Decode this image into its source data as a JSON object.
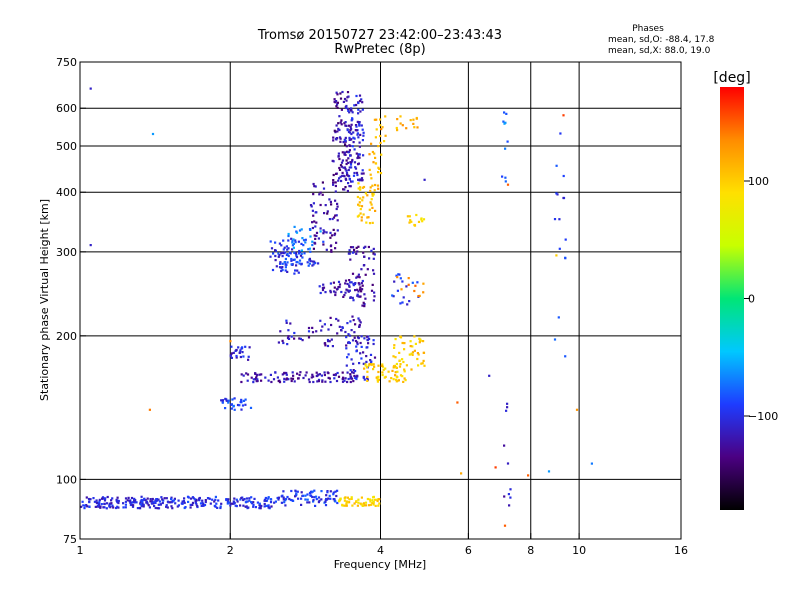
{
  "chart_data": {
    "type": "scatter",
    "title": "Tromsø 20150727 23:42:00–23:43:43",
    "subtitle": "RwPretec (8p)",
    "stats": {
      "heading": "Phases",
      "line1": "mean, sd,O: -88.4, 17.8",
      "line2": "mean, sd,X:  88.0, 19.0"
    },
    "xlabel": "Frequency [MHz]",
    "ylabel": "Stationary phase Virtual Height [km]",
    "x_scale": "log",
    "y_scale": "log",
    "xlim": [
      1,
      16
    ],
    "ylim": [
      75,
      750
    ],
    "x_ticks": [
      1,
      2,
      4,
      6,
      8,
      10,
      16
    ],
    "x_tick_labels": [
      "1",
      "2",
      "4",
      "6",
      "8",
      "10",
      "16"
    ],
    "x_gridlines": [
      2,
      4,
      6,
      8,
      10
    ],
    "y_ticks": [
      75,
      100,
      200,
      300,
      400,
      500,
      600,
      750
    ],
    "y_tick_labels": [
      "75",
      "100",
      "200",
      "300",
      "400",
      "500",
      "600",
      "750"
    ],
    "y_gridlines": [
      100,
      200,
      300,
      400,
      500,
      600
    ],
    "grid": true,
    "colorbar": {
      "label": "[deg]",
      "range": [
        -180,
        180
      ],
      "ticks": [
        100,
        0,
        -100
      ],
      "tick_labels": [
        "100",
        "0",
        "−100"
      ],
      "colors": [
        "#000000",
        "#4b0082",
        "#1e3cff",
        "#00c8ff",
        "#00e676",
        "#c8ff00",
        "#ffe000",
        "#ff8c00",
        "#ff0000"
      ]
    },
    "clusters": [
      {
        "x": [
          1.0,
          1.43
        ],
        "y": [
          87,
          92
        ],
        "phase": -105,
        "n": 140
      },
      {
        "x": [
          1.43,
          2.5
        ],
        "y": [
          87,
          92
        ],
        "phase": -100,
        "n": 160
      },
      {
        "x": [
          2.5,
          3.3
        ],
        "y": [
          88,
          95
        ],
        "phase": -95,
        "n": 80
      },
      {
        "x": [
          3.3,
          4.0
        ],
        "y": [
          88,
          92
        ],
        "phase": 95,
        "n": 60
      },
      {
        "x": [
          1.9,
          2.2
        ],
        "y": [
          140,
          148
        ],
        "phase": -90,
        "n": 30
      },
      {
        "x": [
          2.1,
          3.6
        ],
        "y": [
          160,
          168
        ],
        "phase": -120,
        "n": 110
      },
      {
        "x": [
          2.0,
          2.2
        ],
        "y": [
          178,
          190
        ],
        "phase": -105,
        "n": 25
      },
      {
        "x": [
          2.5,
          3.8
        ],
        "y": [
          190,
          220
        ],
        "phase": -115,
        "n": 70
      },
      {
        "x": [
          3.4,
          3.9
        ],
        "y": [
          160,
          200
        ],
        "phase": -110,
        "n": 60
      },
      {
        "x": [
          3.7,
          4.5
        ],
        "y": [
          160,
          175
        ],
        "phase": 100,
        "n": 60
      },
      {
        "x": [
          4.2,
          4.9
        ],
        "y": [
          170,
          200
        ],
        "phase": 100,
        "n": 45
      },
      {
        "x": [
          3.0,
          3.7
        ],
        "y": [
          240,
          260
        ],
        "phase": -118,
        "n": 50
      },
      {
        "x": [
          3.4,
          3.9
        ],
        "y": [
          230,
          310
        ],
        "phase": -120,
        "n": 60
      },
      {
        "x": [
          2.4,
          2.8
        ],
        "y": [
          270,
          320
        ],
        "phase": -100,
        "n": 60
      },
      {
        "x": [
          2.5,
          3.0
        ],
        "y": [
          280,
          300
        ],
        "phase": -95,
        "n": 40
      },
      {
        "x": [
          2.6,
          3.1
        ],
        "y": [
          300,
          340
        ],
        "phase": -70,
        "n": 30
      },
      {
        "x": [
          2.9,
          3.3
        ],
        "y": [
          300,
          420
        ],
        "phase": -125,
        "n": 70
      },
      {
        "x": [
          3.2,
          3.5
        ],
        "y": [
          400,
          650
        ],
        "phase": -125,
        "n": 110
      },
      {
        "x": [
          3.4,
          3.7
        ],
        "y": [
          420,
          640
        ],
        "phase": -110,
        "n": 110
      },
      {
        "x": [
          3.6,
          3.9
        ],
        "y": [
          340,
          420
        ],
        "phase": 105,
        "n": 40
      },
      {
        "x": [
          3.8,
          4.1
        ],
        "y": [
          400,
          580
        ],
        "phase": 115,
        "n": 35
      },
      {
        "x": [
          4.3,
          4.8
        ],
        "y": [
          540,
          580
        ],
        "phase": 115,
        "n": 14
      },
      {
        "x": [
          4.5,
          4.9
        ],
        "y": [
          340,
          360
        ],
        "phase": 100,
        "n": 14
      },
      {
        "x": [
          4.2,
          4.8
        ],
        "y": [
          230,
          270
        ],
        "phase": -95,
        "n": 18
      },
      {
        "x": [
          4.3,
          4.9
        ],
        "y": [
          240,
          270
        ],
        "phase": 130,
        "n": 10
      },
      {
        "x": [
          7.0,
          7.2
        ],
        "y": [
          420,
          610
        ],
        "phase": -75,
        "n": 10
      },
      {
        "x": [
          8.9,
          9.4
        ],
        "y": [
          180,
          650
        ],
        "phase": -95,
        "n": 16
      },
      {
        "x": [
          7.0,
          7.3
        ],
        "y": [
          85,
          150
        ],
        "phase": -110,
        "n": 10
      }
    ],
    "points": [
      {
        "x": 1.05,
        "y": 660,
        "phase": -110
      },
      {
        "x": 1.05,
        "y": 310,
        "phase": -110
      },
      {
        "x": 1.4,
        "y": 530,
        "phase": -60
      },
      {
        "x": 1.38,
        "y": 140,
        "phase": 140
      },
      {
        "x": 2.0,
        "y": 195,
        "phase": 135
      },
      {
        "x": 4.9,
        "y": 425,
        "phase": -110
      },
      {
        "x": 5.7,
        "y": 145,
        "phase": 150
      },
      {
        "x": 5.8,
        "y": 103,
        "phase": 120
      },
      {
        "x": 6.6,
        "y": 165,
        "phase": -110
      },
      {
        "x": 6.8,
        "y": 106,
        "phase": 160
      },
      {
        "x": 7.1,
        "y": 80,
        "phase": 150
      },
      {
        "x": 7.2,
        "y": 415,
        "phase": 150
      },
      {
        "x": 7.9,
        "y": 102,
        "phase": 150
      },
      {
        "x": 8.7,
        "y": 104,
        "phase": -60
      },
      {
        "x": 9.3,
        "y": 580,
        "phase": 160
      },
      {
        "x": 9.0,
        "y": 295,
        "phase": 100
      },
      {
        "x": 9.9,
        "y": 140,
        "phase": 130
      },
      {
        "x": 10.6,
        "y": 108,
        "phase": -70
      }
    ]
  }
}
